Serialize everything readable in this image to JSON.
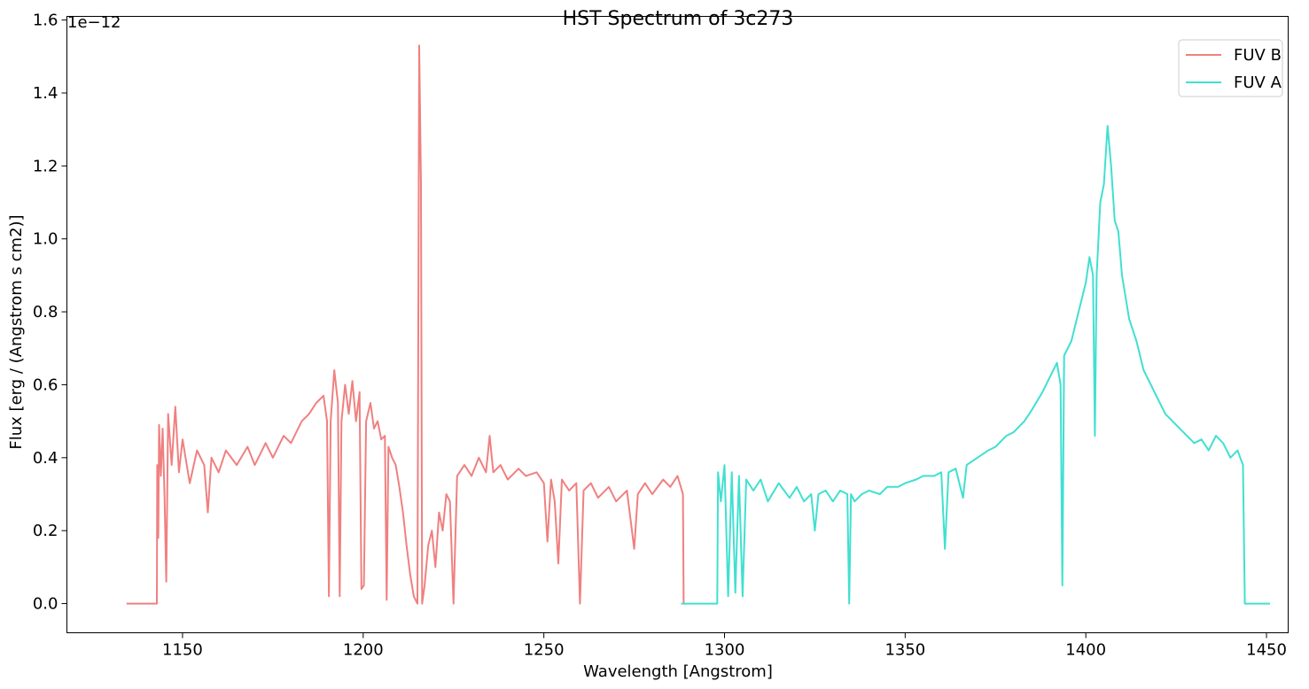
{
  "chart_data": {
    "type": "line",
    "title": "HST Spectrum of 3c273",
    "xlabel": "Wavelength [Angstrom]",
    "ylabel": "Flux [erg / (Angstrom s cm2)]",
    "y_offset_label": "1e−12",
    "xlim": [
      1118,
      1456
    ],
    "ylim": [
      -0.08,
      1.61
    ],
    "x_ticks": [
      1150,
      1200,
      1250,
      1300,
      1350,
      1400,
      1450
    ],
    "y_ticks": [
      0.0,
      0.2,
      0.4,
      0.6,
      0.8,
      1.0,
      1.2,
      1.4,
      1.6
    ],
    "x_tick_labels": [
      "1150",
      "1200",
      "1250",
      "1300",
      "1350",
      "1400",
      "1450"
    ],
    "y_tick_labels": [
      "0.0",
      "0.2",
      "0.4",
      "0.6",
      "0.8",
      "1.0",
      "1.2",
      "1.4",
      "1.6"
    ],
    "grid": false,
    "legend_position": "top-right",
    "series": [
      {
        "name": "FUV B",
        "color": "#F08080",
        "points": [
          [
            1134.5,
            0.0
          ],
          [
            1142.9,
            0.0
          ],
          [
            1143.0,
            0.38
          ],
          [
            1143.3,
            0.18
          ],
          [
            1143.5,
            0.49
          ],
          [
            1144,
            0.35
          ],
          [
            1144.5,
            0.48
          ],
          [
            1145,
            0.3
          ],
          [
            1145.5,
            0.06
          ],
          [
            1146,
            0.52
          ],
          [
            1147,
            0.38
          ],
          [
            1148,
            0.54
          ],
          [
            1149,
            0.36
          ],
          [
            1150,
            0.45
          ],
          [
            1152,
            0.33
          ],
          [
            1154,
            0.42
          ],
          [
            1156,
            0.38
          ],
          [
            1157,
            0.25
          ],
          [
            1158,
            0.4
          ],
          [
            1160,
            0.36
          ],
          [
            1162,
            0.42
          ],
          [
            1165,
            0.38
          ],
          [
            1168,
            0.43
          ],
          [
            1170,
            0.38
          ],
          [
            1173,
            0.44
          ],
          [
            1175,
            0.4
          ],
          [
            1178,
            0.46
          ],
          [
            1180,
            0.44
          ],
          [
            1183,
            0.5
          ],
          [
            1185,
            0.52
          ],
          [
            1187,
            0.55
          ],
          [
            1189,
            0.57
          ],
          [
            1190,
            0.5
          ],
          [
            1190.5,
            0.02
          ],
          [
            1191,
            0.5
          ],
          [
            1192,
            0.64
          ],
          [
            1193,
            0.55
          ],
          [
            1193.5,
            0.02
          ],
          [
            1194,
            0.5
          ],
          [
            1195,
            0.6
          ],
          [
            1196,
            0.52
          ],
          [
            1197,
            0.61
          ],
          [
            1198,
            0.5
          ],
          [
            1199,
            0.58
          ],
          [
            1199.5,
            0.04
          ],
          [
            1200.2,
            0.05
          ],
          [
            1200.8,
            0.5
          ],
          [
            1202,
            0.55
          ],
          [
            1203,
            0.48
          ],
          [
            1204,
            0.5
          ],
          [
            1205,
            0.45
          ],
          [
            1206,
            0.46
          ],
          [
            1206.5,
            0.01
          ],
          [
            1207,
            0.43
          ],
          [
            1208,
            0.4
          ],
          [
            1209,
            0.38
          ],
          [
            1210,
            0.32
          ],
          [
            1211,
            0.25
          ],
          [
            1212,
            0.16
          ],
          [
            1213,
            0.08
          ],
          [
            1214,
            0.02
          ],
          [
            1215,
            0.0
          ],
          [
            1215.5,
            1.53
          ],
          [
            1216,
            1.15
          ],
          [
            1216.3,
            0.0
          ],
          [
            1217,
            0.05
          ],
          [
            1218,
            0.16
          ],
          [
            1219,
            0.2
          ],
          [
            1220,
            0.1
          ],
          [
            1221,
            0.25
          ],
          [
            1222,
            0.2
          ],
          [
            1223,
            0.3
          ],
          [
            1224,
            0.28
          ],
          [
            1225,
            0.0
          ],
          [
            1226,
            0.35
          ],
          [
            1228,
            0.38
          ],
          [
            1230,
            0.35
          ],
          [
            1232,
            0.4
          ],
          [
            1234,
            0.36
          ],
          [
            1235,
            0.46
          ],
          [
            1236,
            0.36
          ],
          [
            1238,
            0.38
          ],
          [
            1240,
            0.34
          ],
          [
            1243,
            0.37
          ],
          [
            1245,
            0.35
          ],
          [
            1248,
            0.36
          ],
          [
            1250,
            0.33
          ],
          [
            1251,
            0.17
          ],
          [
            1252,
            0.34
          ],
          [
            1253,
            0.28
          ],
          [
            1254,
            0.11
          ],
          [
            1255,
            0.34
          ],
          [
            1257,
            0.31
          ],
          [
            1259,
            0.33
          ],
          [
            1260,
            0.0
          ],
          [
            1261,
            0.31
          ],
          [
            1263,
            0.33
          ],
          [
            1265,
            0.29
          ],
          [
            1268,
            0.32
          ],
          [
            1270,
            0.28
          ],
          [
            1273,
            0.31
          ],
          [
            1275,
            0.15
          ],
          [
            1276,
            0.3
          ],
          [
            1278,
            0.33
          ],
          [
            1280,
            0.3
          ],
          [
            1283,
            0.34
          ],
          [
            1285,
            0.32
          ],
          [
            1287,
            0.35
          ],
          [
            1288.5,
            0.3
          ],
          [
            1288.7,
            0.0
          ],
          [
            1289,
            0.0
          ]
        ]
      },
      {
        "name": "FUV A",
        "color": "#40E0D0",
        "points": [
          [
            1288,
            0.0
          ],
          [
            1298,
            0.0
          ],
          [
            1298.2,
            0.36
          ],
          [
            1299,
            0.28
          ],
          [
            1300,
            0.38
          ],
          [
            1301,
            0.02
          ],
          [
            1302,
            0.36
          ],
          [
            1303,
            0.03
          ],
          [
            1304,
            0.35
          ],
          [
            1305,
            0.02
          ],
          [
            1306,
            0.34
          ],
          [
            1308,
            0.31
          ],
          [
            1310,
            0.34
          ],
          [
            1312,
            0.28
          ],
          [
            1315,
            0.33
          ],
          [
            1318,
            0.29
          ],
          [
            1320,
            0.32
          ],
          [
            1322,
            0.28
          ],
          [
            1324,
            0.3
          ],
          [
            1325,
            0.2
          ],
          [
            1326,
            0.3
          ],
          [
            1328,
            0.31
          ],
          [
            1330,
            0.28
          ],
          [
            1332,
            0.31
          ],
          [
            1334,
            0.3
          ],
          [
            1334.5,
            0.0
          ],
          [
            1335,
            0.3
          ],
          [
            1336,
            0.28
          ],
          [
            1338,
            0.3
          ],
          [
            1340,
            0.31
          ],
          [
            1343,
            0.3
          ],
          [
            1345,
            0.32
          ],
          [
            1348,
            0.32
          ],
          [
            1350,
            0.33
          ],
          [
            1353,
            0.34
          ],
          [
            1355,
            0.35
          ],
          [
            1358,
            0.35
          ],
          [
            1360,
            0.36
          ],
          [
            1361,
            0.15
          ],
          [
            1362,
            0.36
          ],
          [
            1364,
            0.37
          ],
          [
            1366,
            0.29
          ],
          [
            1367,
            0.38
          ],
          [
            1370,
            0.4
          ],
          [
            1373,
            0.42
          ],
          [
            1375,
            0.43
          ],
          [
            1378,
            0.46
          ],
          [
            1380,
            0.47
          ],
          [
            1383,
            0.5
          ],
          [
            1385,
            0.53
          ],
          [
            1388,
            0.58
          ],
          [
            1390,
            0.62
          ],
          [
            1392,
            0.66
          ],
          [
            1393,
            0.6
          ],
          [
            1393.5,
            0.05
          ],
          [
            1394,
            0.68
          ],
          [
            1396,
            0.72
          ],
          [
            1398,
            0.8
          ],
          [
            1400,
            0.88
          ],
          [
            1401,
            0.95
          ],
          [
            1402,
            0.9
          ],
          [
            1402.5,
            0.46
          ],
          [
            1403,
            0.9
          ],
          [
            1404,
            1.1
          ],
          [
            1405,
            1.15
          ],
          [
            1406,
            1.31
          ],
          [
            1407,
            1.2
          ],
          [
            1408,
            1.05
          ],
          [
            1409,
            1.02
          ],
          [
            1410,
            0.9
          ],
          [
            1412,
            0.78
          ],
          [
            1414,
            0.72
          ],
          [
            1416,
            0.64
          ],
          [
            1418,
            0.6
          ],
          [
            1420,
            0.56
          ],
          [
            1422,
            0.52
          ],
          [
            1424,
            0.5
          ],
          [
            1426,
            0.48
          ],
          [
            1428,
            0.46
          ],
          [
            1430,
            0.44
          ],
          [
            1432,
            0.45
          ],
          [
            1434,
            0.42
          ],
          [
            1436,
            0.46
          ],
          [
            1438,
            0.44
          ],
          [
            1440,
            0.4
          ],
          [
            1442,
            0.42
          ],
          [
            1443.5,
            0.38
          ],
          [
            1444,
            0.0
          ],
          [
            1451,
            0.0
          ]
        ]
      }
    ]
  }
}
